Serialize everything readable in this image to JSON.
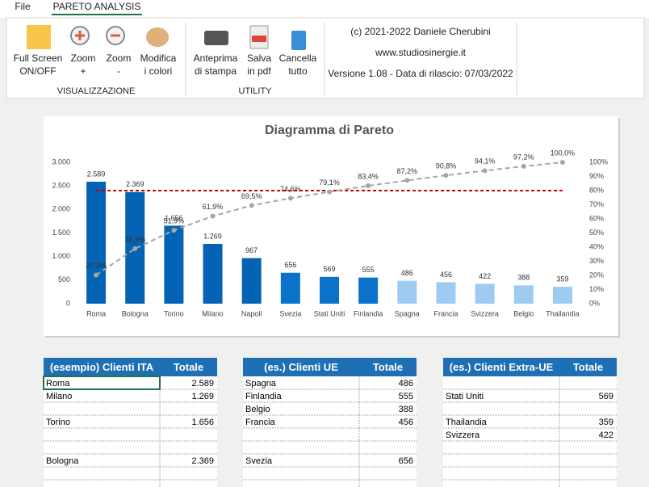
{
  "ribbon": {
    "tabs": [
      "File",
      "PARETO ANALYSIS"
    ],
    "groups": [
      {
        "name": "VISUALIZZAZIONE",
        "buttons": [
          [
            "Full Screen",
            "ON/OFF"
          ],
          [
            "Zoom",
            "+"
          ],
          [
            "Zoom",
            "-"
          ],
          [
            "Modifica",
            "i colori"
          ]
        ]
      },
      {
        "name": "UTILITY",
        "buttons": [
          [
            "Anteprima",
            "di stampa"
          ],
          [
            "Salva",
            "in pdf"
          ],
          [
            "Cancella",
            "tutto"
          ]
        ]
      }
    ],
    "info": [
      "(c) 2021-2022 Daniele Cherubini",
      "www.studiosinergie.it",
      "Versione 1.08 - Data di rilascio: 07/03/2022"
    ]
  },
  "chart_data": {
    "type": "pareto",
    "title": "Diagramma di Pareto",
    "categories": [
      "Roma",
      "Bologna",
      "Torino",
      "Milano",
      "Napoli",
      "Svezia",
      "Stati Uniti",
      "Finlandia",
      "Spagna",
      "Francia",
      "Svizzera",
      "Belgio",
      "Thailandia"
    ],
    "series": [
      {
        "values": [
          2589,
          2369,
          1656,
          1269,
          967,
          656,
          569,
          555,
          486,
          456,
          422,
          388,
          359
        ],
        "value_labels": [
          "2.589",
          "2.369",
          "1.656",
          "1.269",
          "967",
          "656",
          "569",
          "555",
          "486",
          "456",
          "422",
          "388",
          "359"
        ],
        "colors": [
          "#0563b5",
          "#0563b5",
          "#0563b5",
          "#0563b5",
          "#0563b5",
          "#0a72c8",
          "#0a72c8",
          "#0a72c8",
          "#9dcbf2",
          "#9dcbf2",
          "#9dcbf2",
          "#9dcbf2",
          "#9dcbf2"
        ]
      },
      {
        "axis": "y2",
        "color": "#a6a6a6",
        "values": [
          20.3,
          38.9,
          51.9,
          61.9,
          69.5,
          74.6,
          79.1,
          83.4,
          87.2,
          90.8,
          94.1,
          97.2,
          100.0
        ],
        "value_labels": [
          "20,3%",
          "38,9%",
          "51,9%",
          "61,9%",
          "69,5%",
          "74,6%",
          "79,1%",
          "83,4%",
          "87,2%",
          "90,8%",
          "94,1%",
          "97,2%",
          "100,0%"
        ]
      }
    ],
    "threshold": {
      "value": 80,
      "color": "#c00000"
    },
    "ylim": [
      0,
      3000
    ],
    "yticks": [
      0,
      500,
      {
        "value": 1000,
        "label": "1.000"
      },
      {
        "value": 1500,
        "label": "1.500"
      },
      {
        "value": 2000,
        "label": "2.000"
      },
      {
        "value": 2500,
        "label": "2.500"
      },
      {
        "value": 3000,
        "label": "3.000"
      }
    ],
    "y2lim": [
      0,
      100
    ],
    "y2ticks": [
      {
        "value": 0,
        "label": "0%"
      },
      {
        "value": 10,
        "label": "10%"
      },
      {
        "value": 20,
        "label": "20%"
      },
      {
        "value": 30,
        "label": "30%"
      },
      {
        "value": 40,
        "label": "40%"
      },
      {
        "value": 50,
        "label": "50%"
      },
      {
        "value": 60,
        "label": "60%"
      },
      {
        "value": 70,
        "label": "70%"
      },
      {
        "value": 80,
        "label": "80%"
      },
      {
        "value": 90,
        "label": "90%"
      },
      {
        "value": 100,
        "label": "100%"
      }
    ]
  },
  "tables": [
    {
      "header": [
        "(esempio) Clienti ITA",
        "Totale"
      ],
      "rows": [
        [
          "Roma",
          "2.589"
        ],
        [
          "Milano",
          "1.269"
        ],
        null,
        [
          "Torino",
          "1.656"
        ],
        null,
        null,
        [
          "Bologna",
          "2.369"
        ],
        null,
        null
      ]
    },
    {
      "header": [
        "(es.) Clienti UE",
        "Totale"
      ],
      "rows": [
        [
          "Spagna",
          "486"
        ],
        [
          "Finlandia",
          "555"
        ],
        [
          "Belgio",
          "388"
        ],
        [
          "Francia",
          "456"
        ],
        null,
        null,
        [
          "Svezia",
          "656"
        ],
        null,
        null
      ]
    },
    {
      "header": [
        "(es.) Clienti Extra-UE",
        "Totale"
      ],
      "rows": [
        null,
        [
          "Stati Uniti",
          "569"
        ],
        null,
        [
          "Thailandia",
          "359"
        ],
        [
          "Svizzera",
          "422"
        ],
        null,
        null,
        null,
        null
      ]
    }
  ]
}
